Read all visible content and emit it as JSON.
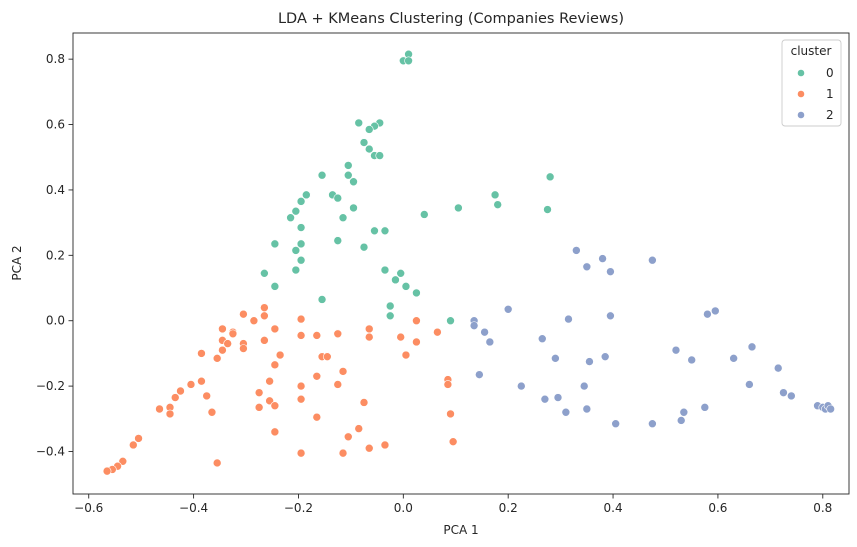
{
  "chart_data": {
    "type": "scatter",
    "title": "LDA + KMeans Clustering (Companies Reviews)",
    "xlabel": "PCA 1",
    "ylabel": "PCA 2",
    "xlim": [
      -0.63,
      0.85
    ],
    "ylim": [
      -0.53,
      0.88
    ],
    "xticks": [
      -0.6,
      -0.4,
      -0.2,
      0.0,
      0.2,
      0.4,
      0.6,
      0.8
    ],
    "yticks": [
      -0.4,
      -0.2,
      0.0,
      0.2,
      0.4,
      0.6,
      0.8
    ],
    "xtick_labels": [
      "−0.6",
      "−0.4",
      "−0.2",
      "0.0",
      "0.2",
      "0.4",
      "0.6",
      "0.8"
    ],
    "ytick_labels": [
      "−0.4",
      "−0.2",
      "0.0",
      "0.2",
      "0.4",
      "0.6",
      "0.8"
    ],
    "grid": false,
    "legend": {
      "title": "cluster",
      "placement": "top-right"
    },
    "series": [
      {
        "name": "0",
        "color": "#66c2a5",
        "points": [
          [
            0.01,
            0.815
          ],
          [
            0.0,
            0.795
          ],
          [
            0.01,
            0.795
          ],
          [
            -0.085,
            0.605
          ],
          [
            -0.045,
            0.605
          ],
          [
            -0.055,
            0.595
          ],
          [
            -0.065,
            0.585
          ],
          [
            -0.075,
            0.545
          ],
          [
            -0.065,
            0.525
          ],
          [
            -0.055,
            0.505
          ],
          [
            -0.045,
            0.505
          ],
          [
            -0.105,
            0.475
          ],
          [
            -0.105,
            0.445
          ],
          [
            -0.095,
            0.425
          ],
          [
            -0.155,
            0.445
          ],
          [
            -0.185,
            0.385
          ],
          [
            -0.195,
            0.365
          ],
          [
            -0.205,
            0.335
          ],
          [
            -0.215,
            0.315
          ],
          [
            -0.135,
            0.385
          ],
          [
            -0.125,
            0.375
          ],
          [
            -0.115,
            0.315
          ],
          [
            -0.095,
            0.345
          ],
          [
            -0.195,
            0.285
          ],
          [
            -0.195,
            0.235
          ],
          [
            -0.205,
            0.215
          ],
          [
            -0.195,
            0.185
          ],
          [
            -0.205,
            0.155
          ],
          [
            -0.245,
            0.235
          ],
          [
            -0.265,
            0.145
          ],
          [
            -0.245,
            0.105
          ],
          [
            -0.125,
            0.245
          ],
          [
            -0.075,
            0.225
          ],
          [
            -0.055,
            0.275
          ],
          [
            -0.035,
            0.275
          ],
          [
            -0.035,
            0.155
          ],
          [
            -0.015,
            0.125
          ],
          [
            -0.005,
            0.145
          ],
          [
            0.005,
            0.105
          ],
          [
            0.025,
            0.085
          ],
          [
            -0.155,
            0.065
          ],
          [
            -0.025,
            0.045
          ],
          [
            -0.025,
            0.015
          ],
          [
            0.04,
            0.325
          ],
          [
            0.105,
            0.345
          ],
          [
            0.09,
            0.0
          ],
          [
            0.175,
            0.385
          ],
          [
            0.18,
            0.355
          ],
          [
            0.275,
            0.34
          ],
          [
            0.28,
            0.44
          ]
        ]
      },
      {
        "name": "1",
        "color": "#fc8d62",
        "points": [
          [
            -0.305,
            0.02
          ],
          [
            -0.265,
            0.04
          ],
          [
            -0.265,
            0.015
          ],
          [
            -0.285,
            0.0
          ],
          [
            -0.345,
            -0.025
          ],
          [
            -0.325,
            -0.035
          ],
          [
            -0.325,
            -0.04
          ],
          [
            -0.345,
            -0.06
          ],
          [
            -0.335,
            -0.07
          ],
          [
            -0.305,
            -0.07
          ],
          [
            -0.305,
            -0.085
          ],
          [
            -0.345,
            -0.09
          ],
          [
            -0.355,
            -0.115
          ],
          [
            -0.385,
            -0.1
          ],
          [
            -0.245,
            -0.025
          ],
          [
            -0.265,
            -0.06
          ],
          [
            -0.235,
            -0.105
          ],
          [
            -0.245,
            -0.135
          ],
          [
            -0.195,
            0.005
          ],
          [
            -0.195,
            -0.045
          ],
          [
            -0.165,
            -0.045
          ],
          [
            -0.155,
            -0.11
          ],
          [
            -0.145,
            -0.11
          ],
          [
            -0.125,
            -0.04
          ],
          [
            -0.165,
            -0.17
          ],
          [
            -0.255,
            -0.185
          ],
          [
            -0.275,
            -0.22
          ],
          [
            -0.275,
            -0.265
          ],
          [
            -0.255,
            -0.245
          ],
          [
            -0.245,
            -0.26
          ],
          [
            -0.245,
            -0.34
          ],
          [
            -0.195,
            -0.2
          ],
          [
            -0.195,
            -0.24
          ],
          [
            -0.165,
            -0.295
          ],
          [
            -0.195,
            -0.405
          ],
          [
            -0.115,
            -0.155
          ],
          [
            -0.125,
            -0.195
          ],
          [
            -0.105,
            -0.355
          ],
          [
            -0.115,
            -0.405
          ],
          [
            -0.075,
            -0.25
          ],
          [
            -0.085,
            -0.33
          ],
          [
            -0.065,
            -0.025
          ],
          [
            -0.065,
            -0.05
          ],
          [
            -0.065,
            -0.39
          ],
          [
            -0.035,
            -0.38
          ],
          [
            -0.005,
            -0.05
          ],
          [
            0.005,
            -0.105
          ],
          [
            0.025,
            -0.0
          ],
          [
            0.025,
            -0.065
          ],
          [
            0.065,
            -0.035
          ],
          [
            0.085,
            -0.18
          ],
          [
            0.085,
            -0.195
          ],
          [
            0.09,
            -0.285
          ],
          [
            0.095,
            -0.37
          ],
          [
            -0.385,
            -0.185
          ],
          [
            -0.405,
            -0.195
          ],
          [
            -0.425,
            -0.215
          ],
          [
            -0.435,
            -0.235
          ],
          [
            -0.445,
            -0.265
          ],
          [
            -0.445,
            -0.285
          ],
          [
            -0.375,
            -0.23
          ],
          [
            -0.365,
            -0.28
          ],
          [
            -0.465,
            -0.27
          ],
          [
            -0.515,
            -0.38
          ],
          [
            -0.505,
            -0.36
          ],
          [
            -0.535,
            -0.43
          ],
          [
            -0.545,
            -0.445
          ],
          [
            -0.555,
            -0.455
          ],
          [
            -0.565,
            -0.46
          ],
          [
            -0.355,
            -0.435
          ]
        ]
      },
      {
        "name": "2",
        "color": "#8da0cb",
        "points": [
          [
            0.135,
            0.0
          ],
          [
            0.135,
            -0.015
          ],
          [
            0.155,
            -0.035
          ],
          [
            0.165,
            -0.065
          ],
          [
            0.2,
            0.035
          ],
          [
            0.145,
            -0.165
          ],
          [
            0.225,
            -0.2
          ],
          [
            0.265,
            -0.055
          ],
          [
            0.29,
            -0.115
          ],
          [
            0.27,
            -0.24
          ],
          [
            0.295,
            -0.235
          ],
          [
            0.31,
            -0.28
          ],
          [
            0.315,
            0.005
          ],
          [
            0.33,
            0.215
          ],
          [
            0.35,
            0.165
          ],
          [
            0.38,
            0.19
          ],
          [
            0.395,
            0.15
          ],
          [
            0.345,
            -0.2
          ],
          [
            0.35,
            -0.27
          ],
          [
            0.355,
            -0.125
          ],
          [
            0.385,
            -0.11
          ],
          [
            0.395,
            0.015
          ],
          [
            0.405,
            -0.315
          ],
          [
            0.475,
            -0.315
          ],
          [
            0.475,
            0.185
          ],
          [
            0.52,
            -0.09
          ],
          [
            0.53,
            -0.305
          ],
          [
            0.535,
            -0.28
          ],
          [
            0.55,
            -0.12
          ],
          [
            0.575,
            -0.265
          ],
          [
            0.58,
            0.02
          ],
          [
            0.595,
            0.03
          ],
          [
            0.63,
            -0.115
          ],
          [
            0.665,
            -0.08
          ],
          [
            0.66,
            -0.195
          ],
          [
            0.715,
            -0.145
          ],
          [
            0.725,
            -0.22
          ],
          [
            0.74,
            -0.23
          ],
          [
            0.79,
            -0.26
          ],
          [
            0.8,
            -0.265
          ],
          [
            0.805,
            -0.27
          ],
          [
            0.81,
            -0.26
          ],
          [
            0.815,
            -0.27
          ]
        ]
      }
    ]
  }
}
